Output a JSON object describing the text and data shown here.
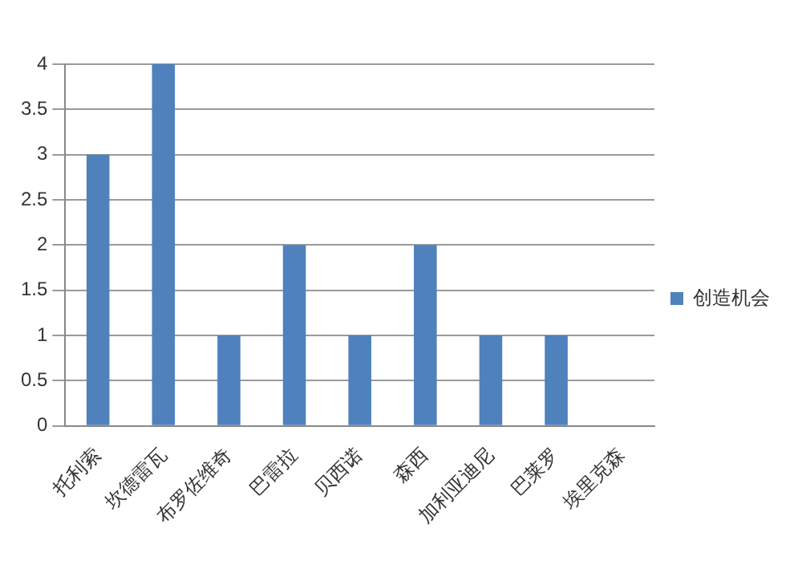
{
  "chart_data": {
    "type": "bar",
    "categories": [
      "托利索",
      "坎德雷瓦",
      "布罗佐维奇",
      "巴雷拉",
      "贝西诺",
      "森西",
      "加利亚迪尼",
      "巴莱罗",
      "埃里克森"
    ],
    "series": [
      {
        "name": "创造机会",
        "color": "#4f81bd",
        "values": [
          3,
          4,
          1,
          2,
          1,
          2,
          1,
          1,
          0
        ]
      }
    ],
    "ylim": [
      0,
      4
    ],
    "yticks": [
      0,
      0.5,
      1,
      1.5,
      2,
      2.5,
      3,
      3.5,
      4
    ],
    "grid": "y",
    "legend": "right"
  }
}
